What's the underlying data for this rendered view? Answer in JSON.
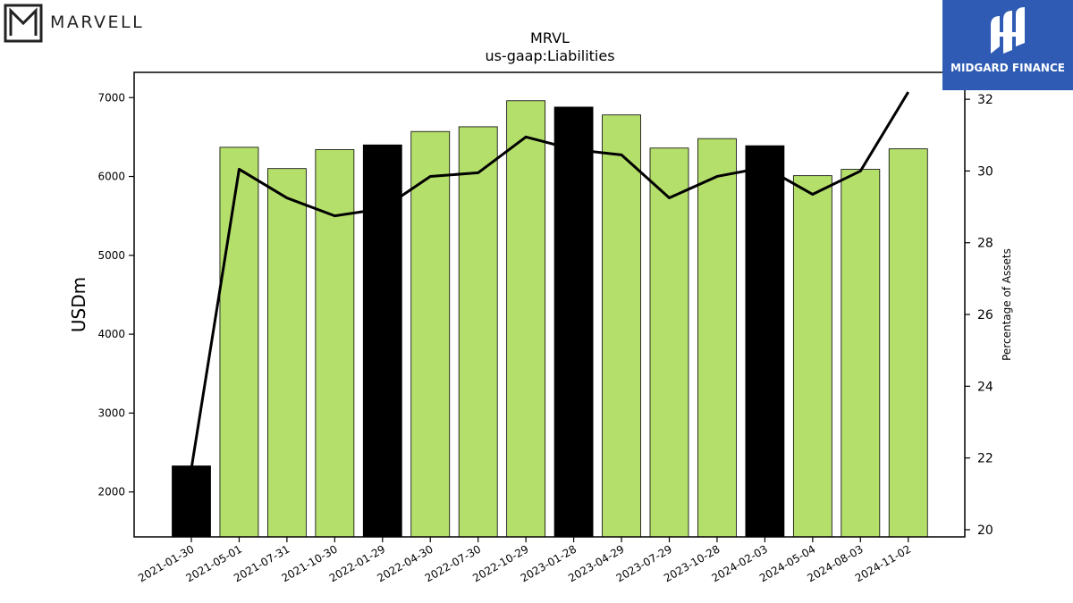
{
  "branding": {
    "left_logo_text": "MARVELL",
    "right_logo_text": "MIDGARD FINANCE",
    "right_logo_color": "#2f5bb4"
  },
  "chart_data": {
    "type": "bar",
    "title": "MRVL",
    "subtitle": "us-gaap:Liabilities",
    "ylabel": "USDm",
    "y2label": "Percentage of Assets",
    "ylim": [
      1430,
      7320
    ],
    "y2lim": [
      19.8,
      32.75
    ],
    "yticks": [
      2000,
      3000,
      4000,
      5000,
      6000,
      7000
    ],
    "y2ticks": [
      20,
      22,
      24,
      26,
      28,
      30,
      32
    ],
    "categories": [
      "2021-01-30",
      "2021-05-01",
      "2021-07-31",
      "2021-10-30",
      "2022-01-29",
      "2022-04-30",
      "2022-07-30",
      "2022-10-29",
      "2023-01-28",
      "2023-04-29",
      "2023-07-29",
      "2023-10-28",
      "2024-02-03",
      "2024-05-04",
      "2024-08-03",
      "2024-11-02"
    ],
    "series": [
      {
        "kind": "bar",
        "values": [
          2330,
          6370,
          6100,
          6340,
          6400,
          6570,
          6630,
          6960,
          6880,
          6780,
          6360,
          6480,
          6390,
          6010,
          6090,
          6350
        ],
        "colors": [
          "#000000",
          "#b5df6b",
          "#b5df6b",
          "#b5df6b",
          "#000000",
          "#b5df6b",
          "#b5df6b",
          "#b5df6b",
          "#000000",
          "#b5df6b",
          "#b5df6b",
          "#b5df6b",
          "#000000",
          "#b5df6b",
          "#b5df6b",
          "#b5df6b"
        ]
      },
      {
        "kind": "line",
        "axis": "right",
        "color": "#000000",
        "values": [
          21.7,
          30.05,
          29.25,
          28.75,
          28.95,
          29.85,
          29.95,
          30.95,
          30.6,
          30.45,
          29.25,
          29.85,
          30.1,
          29.35,
          30.0,
          32.2
        ]
      }
    ],
    "grid": false
  }
}
